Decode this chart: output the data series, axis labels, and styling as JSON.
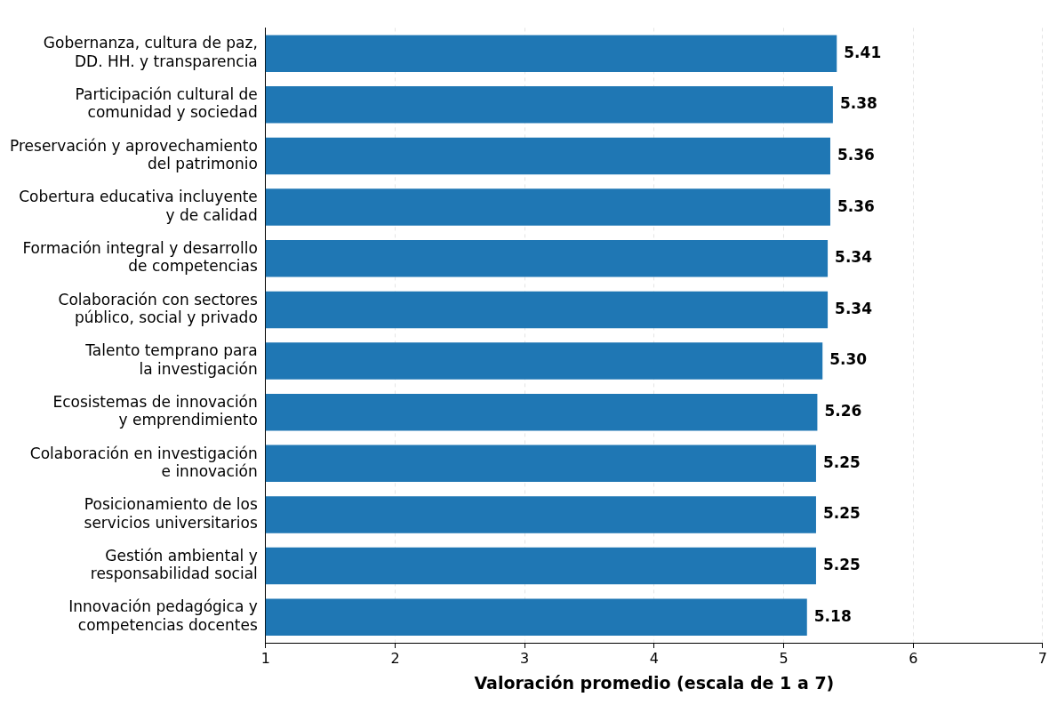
{
  "chart_data": {
    "type": "bar",
    "orientation": "horizontal",
    "xlabel": "Valoración promedio (escala de 1 a 7)",
    "categories": [
      "Gobernanza, cultura de paz,\nDD. HH. y transparencia",
      "Participación cultural de\ncomunidad y sociedad",
      "Preservación y aprovechamiento\ndel patrimonio",
      "Cobertura educativa incluyente\ny de calidad",
      "Formación integral y desarrollo\nde competencias",
      "Colaboración con sectores\npúblico, social y privado",
      "Talento temprano para\nla investigación",
      "Ecosistemas de innovación\ny emprendimiento",
      "Colaboración en investigación\ne innovación",
      "Posicionamiento de los\nservicios universitarios",
      "Gestión ambiental y\nresponsabilidad social",
      "Innovación pedagógica y\ncompetencias docentes"
    ],
    "values": [
      5.41,
      5.38,
      5.36,
      5.36,
      5.34,
      5.34,
      5.3,
      5.26,
      5.25,
      5.25,
      5.25,
      5.18
    ],
    "value_labels": [
      "5.41",
      "5.38",
      "5.36",
      "5.36",
      "5.34",
      "5.34",
      "5.30",
      "5.26",
      "5.25",
      "5.25",
      "5.25",
      "5.18"
    ],
    "color": "#1f77b4",
    "xlim": [
      1,
      7
    ],
    "xticks": [
      1,
      2,
      3,
      4,
      5,
      6,
      7
    ],
    "grid": "x",
    "legend": false
  }
}
